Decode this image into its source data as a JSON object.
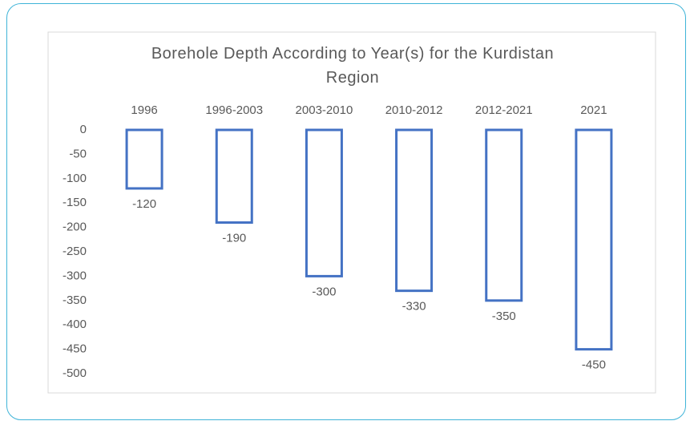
{
  "chart_data": {
    "type": "bar",
    "title": "Borehole Depth According to Year(s) for the Kurdistan Region",
    "categories": [
      "1996",
      "1996-2003",
      "2003-2010",
      "2010-2012",
      "2012-2021",
      "2021"
    ],
    "values": [
      -120,
      -190,
      -300,
      -330,
      -350,
      -450
    ],
    "color": "#4472c4",
    "ylim": [
      -500,
      0
    ],
    "yticks": [
      0,
      -50,
      -100,
      -150,
      -200,
      -250,
      -300,
      -350,
      -400,
      -450,
      -500
    ],
    "grid": false
  }
}
